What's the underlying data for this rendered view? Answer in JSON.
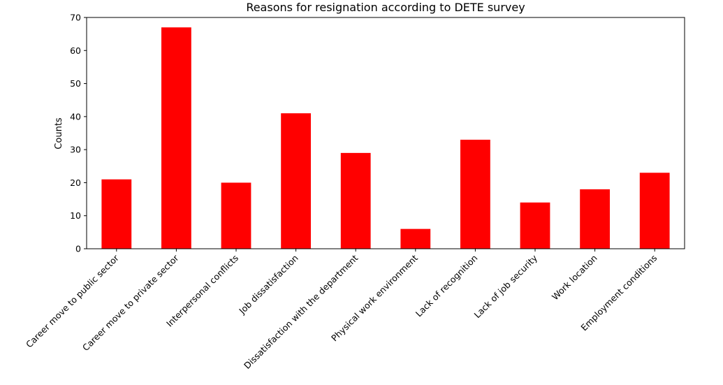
{
  "chart_data": {
    "type": "bar",
    "title": "Reasons for resignation according to DETE survey",
    "xlabel": "",
    "ylabel": "Counts",
    "categories": [
      "Career move to public sector",
      "Career move to private sector",
      "Interpersonal conflicts",
      "Job dissatisfaction",
      "Dissatisfaction with the department",
      "Physical work environment",
      "Lack of recognition",
      "Lack of job security",
      "Work location",
      "Employment conditions"
    ],
    "values": [
      21,
      67,
      20,
      41,
      29,
      6,
      33,
      14,
      18,
      23
    ],
    "ylim": [
      0,
      70
    ],
    "yticks": [
      0,
      10,
      20,
      30,
      40,
      50,
      60,
      70
    ],
    "bar_color": "#ff0000",
    "grid": false,
    "legend": "none"
  }
}
